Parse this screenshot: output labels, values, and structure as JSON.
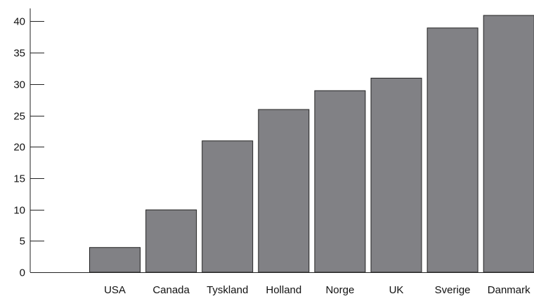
{
  "chart_data": {
    "type": "bar",
    "categories": [
      "USA",
      "Canada",
      "Tyskland",
      "Holland",
      "Norge",
      "UK",
      "Sverige",
      "Danmark"
    ],
    "values": [
      4,
      10,
      21,
      26,
      29,
      31,
      39,
      41
    ],
    "yticks": [
      "0",
      "5",
      "10",
      "15",
      "20",
      "25",
      "30",
      "35",
      "40"
    ],
    "ylim": [
      0,
      42
    ],
    "bar_color": "#818185",
    "bar_edge_color": "#222222",
    "axis_color": "#222222",
    "grid": false
  }
}
